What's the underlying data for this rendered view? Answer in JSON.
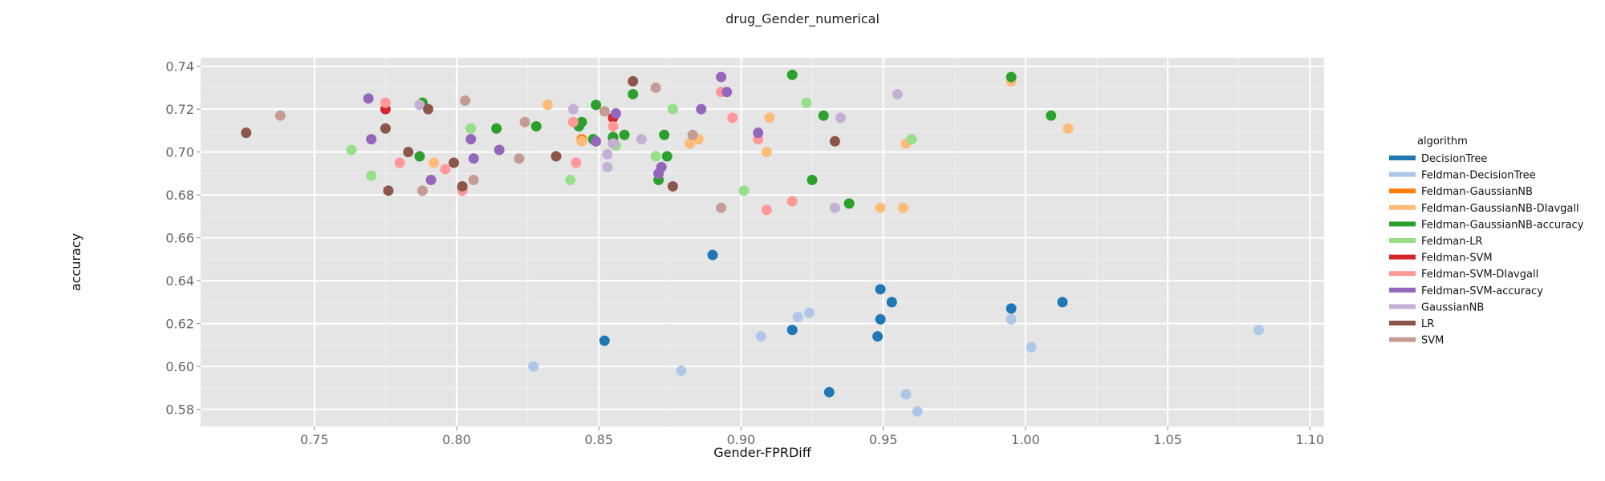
{
  "chart_data": {
    "type": "scatter",
    "title": "drug_Gender_numerical",
    "xlabel": "Gender-FPRDiff",
    "ylabel": "accuracy",
    "xlim": [
      0.71,
      1.105
    ],
    "ylim": [
      0.572,
      0.744
    ],
    "x_ticks": [
      "0.75",
      "0.80",
      "0.85",
      "0.90",
      "0.95",
      "1.00",
      "1.05",
      "1.10"
    ],
    "y_ticks": [
      "0.58",
      "0.60",
      "0.62",
      "0.64",
      "0.66",
      "0.68",
      "0.70",
      "0.72",
      "0.74"
    ],
    "grid": true,
    "legend_title": "algorithm",
    "legend_position": "right",
    "series": [
      {
        "name": "DecisionTree",
        "color": "#1f77b4",
        "points": [
          [
            0.852,
            0.612
          ],
          [
            0.89,
            0.652
          ],
          [
            0.918,
            0.617
          ],
          [
            0.931,
            0.588
          ],
          [
            0.948,
            0.614
          ],
          [
            0.949,
            0.622
          ],
          [
            0.949,
            0.636
          ],
          [
            0.953,
            0.63
          ],
          [
            0.995,
            0.627
          ],
          [
            1.013,
            0.63
          ]
        ]
      },
      {
        "name": "Feldman-DecisionTree",
        "color": "#aec7e8",
        "points": [
          [
            0.827,
            0.6
          ],
          [
            0.879,
            0.598
          ],
          [
            0.907,
            0.614
          ],
          [
            0.92,
            0.623
          ],
          [
            0.924,
            0.625
          ],
          [
            0.958,
            0.587
          ],
          [
            0.962,
            0.579
          ],
          [
            0.995,
            0.622
          ],
          [
            1.002,
            0.609
          ],
          [
            1.082,
            0.617
          ]
        ]
      },
      {
        "name": "Feldman-GaussianNB",
        "color": "#ff7f0e",
        "points": [
          [
            0.844,
            0.706
          ],
          [
            0.855,
            0.706
          ]
        ]
      },
      {
        "name": "Feldman-GaussianNB-DIavgall",
        "color": "#ffbb78",
        "points": [
          [
            0.792,
            0.695
          ],
          [
            0.832,
            0.722
          ],
          [
            0.844,
            0.705
          ],
          [
            0.882,
            0.704
          ],
          [
            0.885,
            0.706
          ],
          [
            0.909,
            0.7
          ],
          [
            0.91,
            0.716
          ],
          [
            0.949,
            0.674
          ],
          [
            0.957,
            0.674
          ],
          [
            0.958,
            0.704
          ],
          [
            0.995,
            0.733
          ],
          [
            1.015,
            0.711
          ]
        ]
      },
      {
        "name": "Feldman-GaussianNB-accuracy",
        "color": "#2ca02c",
        "points": [
          [
            0.788,
            0.723
          ],
          [
            0.787,
            0.698
          ],
          [
            0.814,
            0.711
          ],
          [
            0.828,
            0.712
          ],
          [
            0.844,
            0.714
          ],
          [
            0.843,
            0.712
          ],
          [
            0.849,
            0.722
          ],
          [
            0.848,
            0.706
          ],
          [
            0.855,
            0.707
          ],
          [
            0.859,
            0.708
          ],
          [
            0.862,
            0.727
          ],
          [
            0.873,
            0.708
          ],
          [
            0.874,
            0.698
          ],
          [
            0.871,
            0.687
          ],
          [
            0.918,
            0.736
          ],
          [
            0.929,
            0.717
          ],
          [
            0.925,
            0.687
          ],
          [
            0.938,
            0.676
          ],
          [
            0.995,
            0.735
          ],
          [
            1.009,
            0.717
          ]
        ]
      },
      {
        "name": "Feldman-LR",
        "color": "#98df8a",
        "points": [
          [
            0.763,
            0.701
          ],
          [
            0.77,
            0.689
          ],
          [
            0.805,
            0.711
          ],
          [
            0.84,
            0.687
          ],
          [
            0.856,
            0.703
          ],
          [
            0.87,
            0.698
          ],
          [
            0.876,
            0.72
          ],
          [
            0.901,
            0.682
          ],
          [
            0.923,
            0.723
          ],
          [
            0.96,
            0.706
          ]
        ]
      },
      {
        "name": "Feldman-SVM",
        "color": "#d62728",
        "points": [
          [
            0.775,
            0.72
          ],
          [
            0.802,
            0.683
          ],
          [
            0.855,
            0.716
          ]
        ]
      },
      {
        "name": "Feldman-SVM-DIavgall",
        "color": "#ff9896",
        "points": [
          [
            0.775,
            0.723
          ],
          [
            0.78,
            0.695
          ],
          [
            0.796,
            0.692
          ],
          [
            0.802,
            0.682
          ],
          [
            0.841,
            0.714
          ],
          [
            0.842,
            0.695
          ],
          [
            0.855,
            0.712
          ],
          [
            0.871,
            0.69
          ],
          [
            0.893,
            0.728
          ],
          [
            0.897,
            0.716
          ],
          [
            0.906,
            0.706
          ],
          [
            0.909,
            0.673
          ],
          [
            0.918,
            0.677
          ]
        ]
      },
      {
        "name": "Feldman-SVM-accuracy",
        "color": "#9467bd",
        "points": [
          [
            0.769,
            0.725
          ],
          [
            0.77,
            0.706
          ],
          [
            0.791,
            0.687
          ],
          [
            0.805,
            0.706
          ],
          [
            0.806,
            0.697
          ],
          [
            0.815,
            0.701
          ],
          [
            0.849,
            0.705
          ],
          [
            0.856,
            0.718
          ],
          [
            0.871,
            0.69
          ],
          [
            0.872,
            0.693
          ],
          [
            0.886,
            0.72
          ],
          [
            0.893,
            0.735
          ],
          [
            0.895,
            0.728
          ],
          [
            0.906,
            0.709
          ]
        ]
      },
      {
        "name": "GaussianNB",
        "color": "#c5b0d5",
        "points": [
          [
            0.787,
            0.722
          ],
          [
            0.841,
            0.72
          ],
          [
            0.853,
            0.693
          ],
          [
            0.853,
            0.699
          ],
          [
            0.855,
            0.704
          ],
          [
            0.865,
            0.706
          ],
          [
            0.933,
            0.674
          ],
          [
            0.935,
            0.716
          ],
          [
            0.955,
            0.727
          ]
        ]
      },
      {
        "name": "LR",
        "color": "#8c564b",
        "points": [
          [
            0.726,
            0.709
          ],
          [
            0.775,
            0.711
          ],
          [
            0.776,
            0.682
          ],
          [
            0.783,
            0.7
          ],
          [
            0.79,
            0.72
          ],
          [
            0.799,
            0.695
          ],
          [
            0.802,
            0.684
          ],
          [
            0.835,
            0.698
          ],
          [
            0.862,
            0.733
          ],
          [
            0.876,
            0.684
          ],
          [
            0.933,
            0.705
          ]
        ]
      },
      {
        "name": "SVM",
        "color": "#c49c94",
        "points": [
          [
            0.738,
            0.717
          ],
          [
            0.788,
            0.682
          ],
          [
            0.803,
            0.724
          ],
          [
            0.806,
            0.687
          ],
          [
            0.822,
            0.697
          ],
          [
            0.824,
            0.714
          ],
          [
            0.852,
            0.719
          ],
          [
            0.87,
            0.73
          ],
          [
            0.883,
            0.708
          ],
          [
            0.893,
            0.674
          ]
        ]
      }
    ]
  }
}
